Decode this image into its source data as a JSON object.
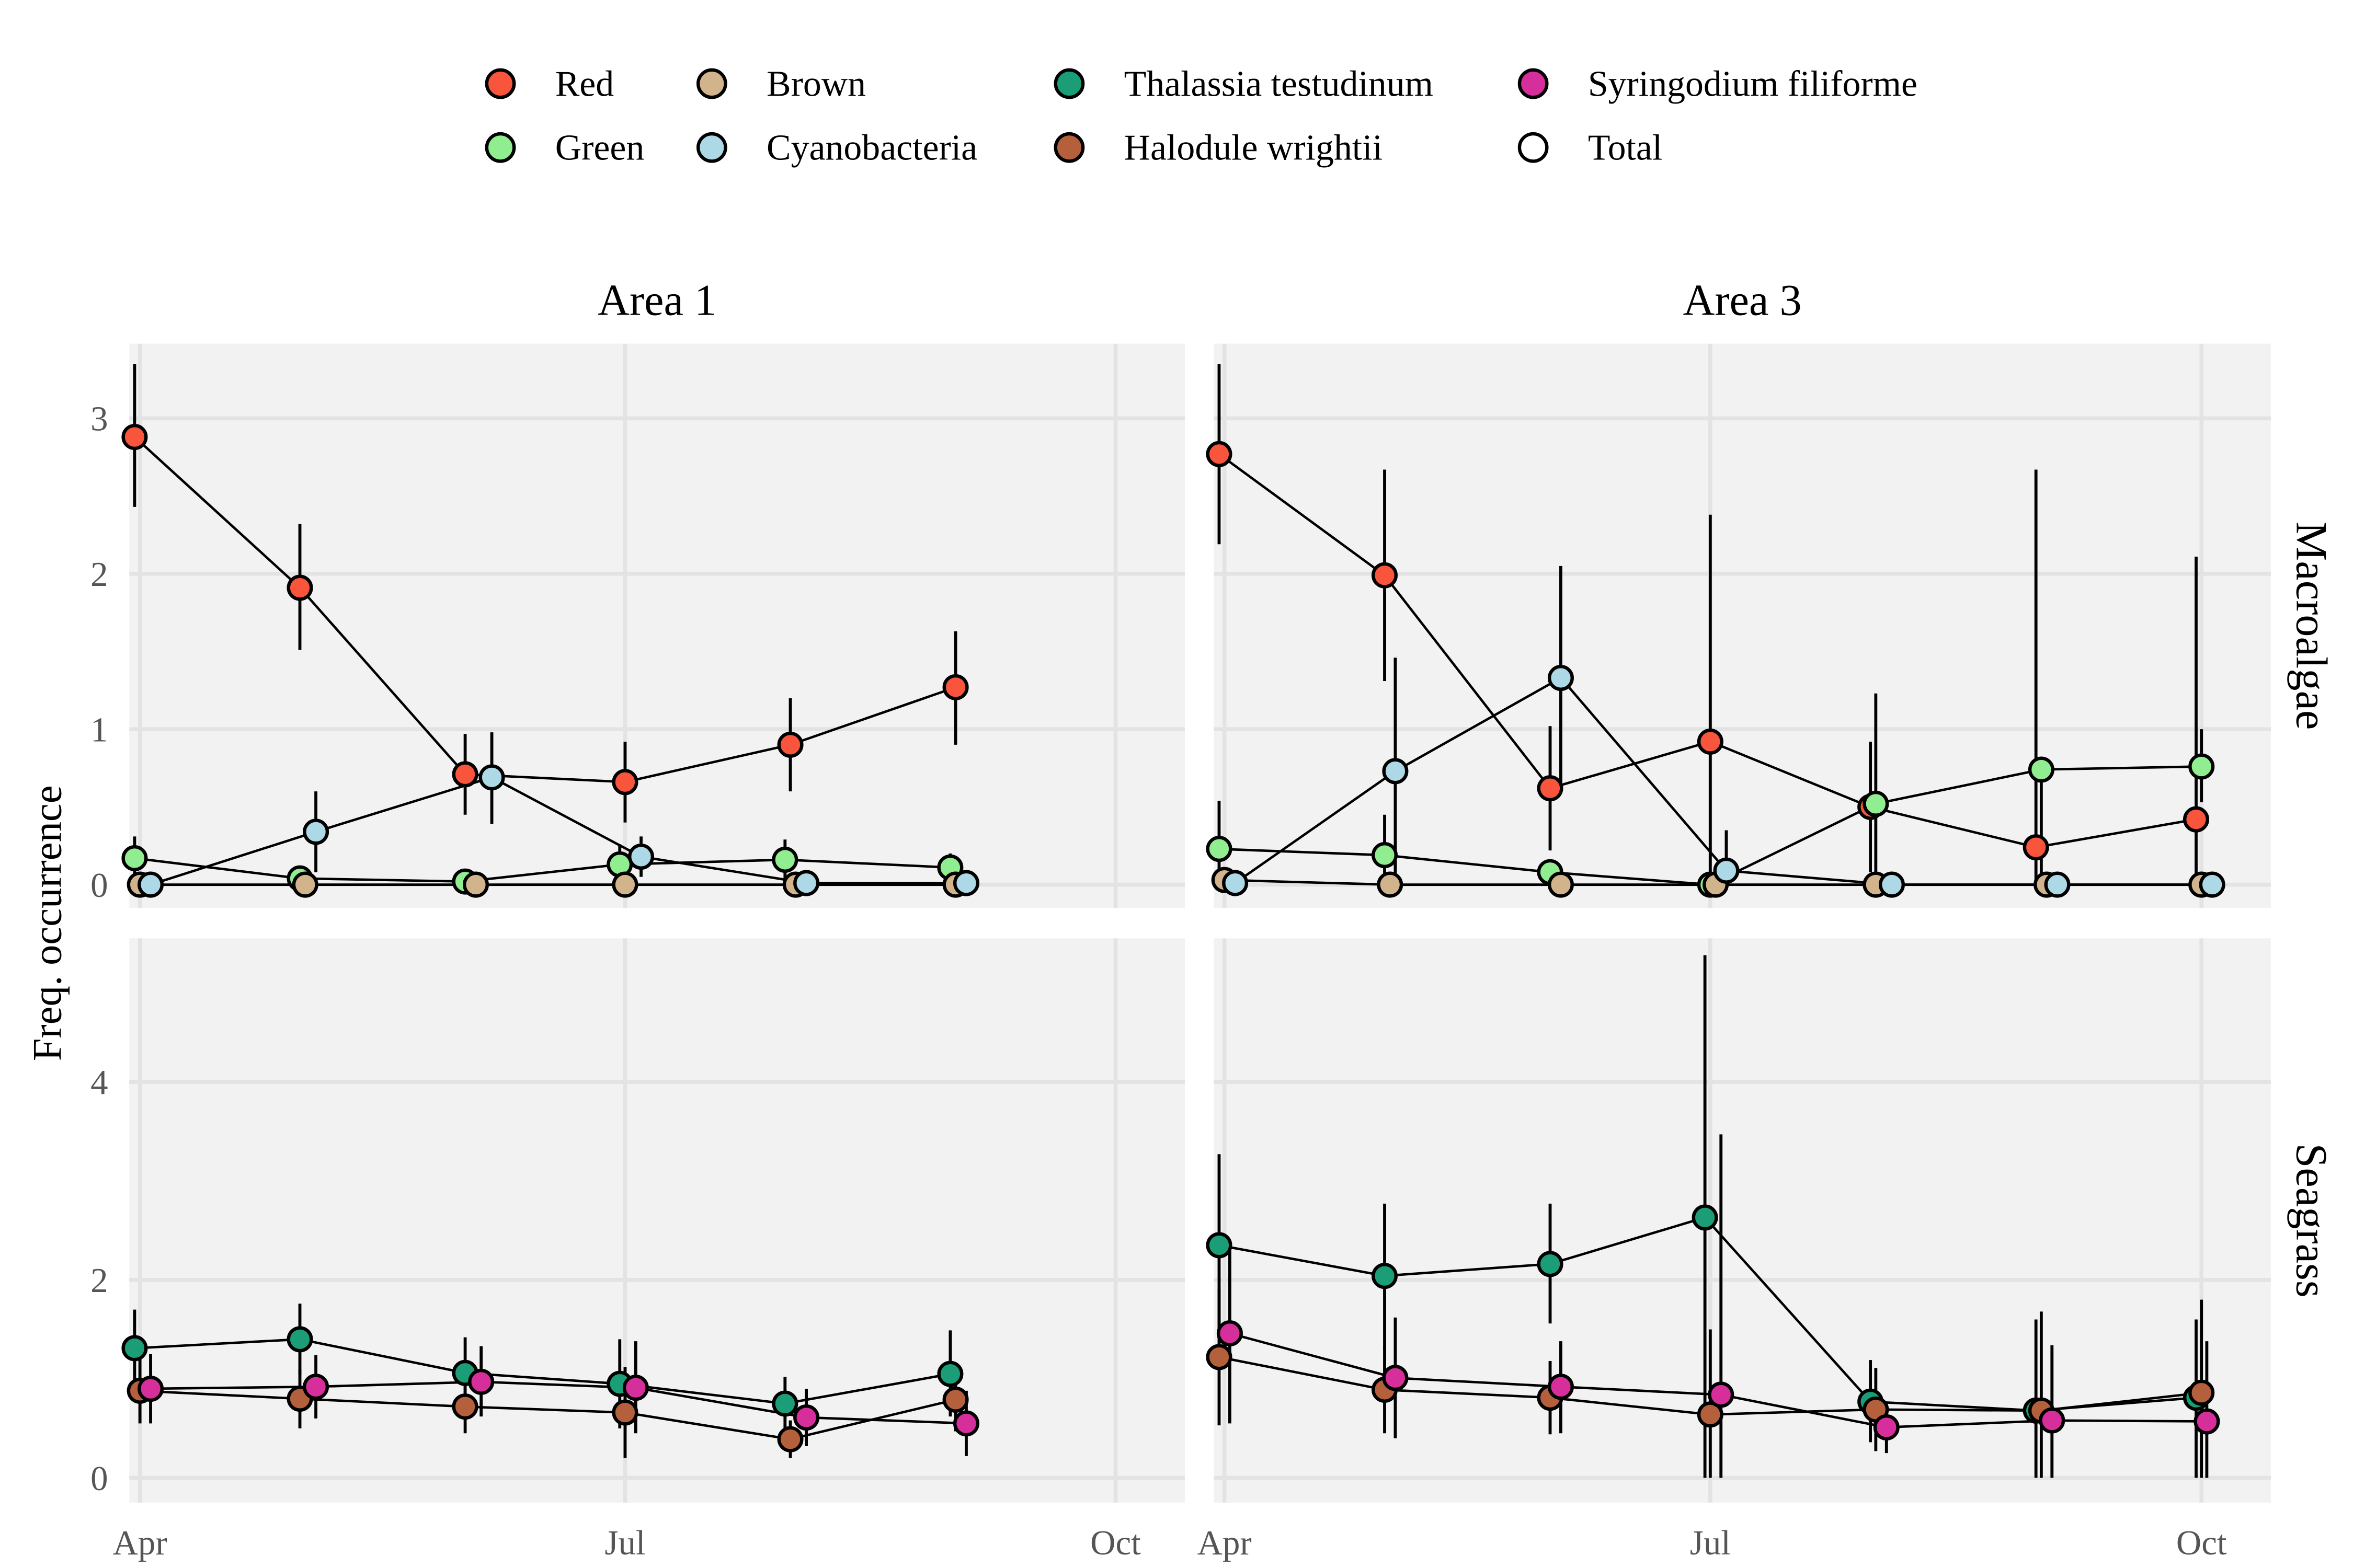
{
  "chart_data": {
    "type": "scatter",
    "ylabel": "Freq. occurrence",
    "x_ticks": [
      "Apr",
      "Jul",
      "Oct"
    ],
    "x_tick_dates": [
      "2019-04-01",
      "2019-07-01",
      "2019-10-01"
    ],
    "grid": true,
    "legend_position": "top",
    "colors": {
      "Red": "#f8553c",
      "Green": "#90ee90",
      "Brown": "#d2b48c",
      "Cyanobacteria": "#add8e6",
      "Thalassia testudinum": "#1b9e77",
      "Halodule wrightii": "#b5603c",
      "Syringodium filiforme": "#d62f9b",
      "Total": "#ffffff"
    },
    "legend": [
      "Red",
      "Brown",
      "Thalassia testudinum",
      "Syringodium filiforme",
      "Green",
      "Cyanobacteria",
      "Halodule wrightii",
      "Total"
    ],
    "columns": [
      "Area 1",
      "Area 3"
    ],
    "rows": [
      "Macroalgae",
      "Seagrass"
    ],
    "row_yticks": {
      "Macroalgae": [
        0,
        1,
        2,
        3
      ],
      "Seagrass": [
        0,
        2,
        4
      ]
    },
    "panels": [
      {
        "area": "Area 1",
        "group": "Macroalgae",
        "series": [
          {
            "name": "Red",
            "x": [
              "2019-03-31",
              "2019-05-01",
              "2019-06-01",
              "2019-07-01",
              "2019-08-01",
              "2019-09-01"
            ],
            "y": [
              2.88,
              1.91,
              0.71,
              0.66,
              0.9,
              1.27
            ],
            "lo": [
              2.43,
              1.51,
              0.45,
              0.4,
              0.6,
              0.9
            ],
            "hi": [
              3.35,
              2.32,
              0.97,
              0.92,
              1.2,
              1.63
            ]
          },
          {
            "name": "Green",
            "x": [
              "2019-03-31",
              "2019-05-01",
              "2019-06-01",
              "2019-06-30",
              "2019-07-31",
              "2019-08-31"
            ],
            "y": [
              0.17,
              0.04,
              0.02,
              0.13,
              0.16,
              0.11
            ],
            "lo": [
              0.03,
              0,
              0,
              0,
              0.03,
              0
            ],
            "hi": [
              0.31,
              0.08,
              0.05,
              0.26,
              0.29,
              0.2
            ]
          },
          {
            "name": "Brown",
            "x": [
              "2019-04-01",
              "2019-05-02",
              "2019-06-03",
              "2019-07-01",
              "2019-08-02",
              "2019-09-01"
            ],
            "y": [
              0,
              0,
              0,
              0,
              0,
              0
            ],
            "lo": [
              0,
              0,
              0,
              0,
              0,
              0
            ],
            "hi": [
              0,
              0,
              0,
              0,
              0,
              0
            ]
          },
          {
            "name": "Cyanobacteria",
            "x": [
              "2019-04-03",
              "2019-05-04",
              "2019-06-06",
              "2019-07-04",
              "2019-08-04",
              "2019-09-03"
            ],
            "y": [
              0,
              0.34,
              0.69,
              0.18,
              0.01,
              0.01
            ],
            "lo": [
              0,
              0.08,
              0.39,
              0.05,
              0,
              0
            ],
            "hi": [
              0,
              0.6,
              0.98,
              0.31,
              0.03,
              0.03
            ]
          }
        ]
      },
      {
        "area": "Area 3",
        "group": "Macroalgae",
        "series": [
          {
            "name": "Red",
            "x": [
              "2019-03-31",
              "2019-05-01",
              "2019-06-01",
              "2019-07-01",
              "2019-07-31",
              "2019-08-31",
              "2019-09-30"
            ],
            "y": [
              2.77,
              1.99,
              0.62,
              0.92,
              0.5,
              0.24,
              0.42
            ],
            "lo": [
              2.19,
              1.31,
              0.22,
              0,
              0.08,
              0,
              0
            ],
            "hi": [
              3.35,
              2.67,
              1.02,
              2.38,
              0.92,
              2.67,
              2.11
            ]
          },
          {
            "name": "Green",
            "x": [
              "2019-03-31",
              "2019-05-01",
              "2019-06-01",
              "2019-07-01",
              "2019-08-01",
              "2019-09-01",
              "2019-10-01"
            ],
            "y": [
              0.23,
              0.19,
              0.08,
              0,
              0.52,
              0.74,
              0.76
            ],
            "lo": [
              0,
              0,
              0,
              0,
              0,
              0,
              0.53
            ],
            "hi": [
              0.54,
              0.45,
              0.16,
              0,
              1.23,
              0.74,
              1.0
            ]
          },
          {
            "name": "Brown",
            "x": [
              "2019-04-01",
              "2019-05-02",
              "2019-06-03",
              "2019-07-02",
              "2019-08-01",
              "2019-09-02",
              "2019-10-01"
            ],
            "y": [
              0.03,
              0,
              0,
              0,
              0,
              0,
              0
            ],
            "lo": [
              0,
              0,
              0,
              0,
              0,
              0,
              0
            ],
            "hi": [
              0.06,
              0,
              0,
              0,
              0,
              0,
              0
            ]
          },
          {
            "name": "Cyanobacteria",
            "x": [
              "2019-04-03",
              "2019-05-03",
              "2019-06-03",
              "2019-07-04",
              "2019-08-04",
              "2019-09-04",
              "2019-10-03"
            ],
            "y": [
              0.01,
              0.73,
              1.33,
              0.09,
              0,
              0,
              0
            ],
            "lo": [
              0,
              0,
              0.62,
              0,
              0,
              0,
              0
            ],
            "hi": [
              0.03,
              1.46,
              2.05,
              0.35,
              0,
              0,
              0
            ]
          }
        ]
      },
      {
        "area": "Area 1",
        "group": "Seagrass",
        "series": [
          {
            "name": "Thalassia testudinum",
            "x": [
              "2019-03-31",
              "2019-05-01",
              "2019-06-01",
              "2019-06-30",
              "2019-07-31",
              "2019-08-31"
            ],
            "y": [
              1.31,
              1.4,
              1.06,
              0.95,
              0.75,
              1.05
            ],
            "lo": [
              0.93,
              1.04,
              0.71,
              0.5,
              0.48,
              0.62
            ],
            "hi": [
              1.7,
              1.76,
              1.42,
              1.4,
              1.02,
              1.49
            ]
          },
          {
            "name": "Halodule wrightii",
            "x": [
              "2019-04-01",
              "2019-05-01",
              "2019-06-01",
              "2019-07-01",
              "2019-08-01",
              "2019-09-01"
            ],
            "y": [
              0.88,
              0.8,
              0.72,
              0.66,
              0.39,
              0.79
            ],
            "lo": [
              0.55,
              0.5,
              0.45,
              0.2,
              0.2,
              0.47
            ],
            "hi": [
              1.2,
              1.1,
              1.0,
              1.12,
              0.58,
              1.1
            ]
          },
          {
            "name": "Syringodium filiforme",
            "x": [
              "2019-04-03",
              "2019-05-04",
              "2019-06-04",
              "2019-07-03",
              "2019-08-04",
              "2019-09-03"
            ],
            "y": [
              0.9,
              0.92,
              0.97,
              0.91,
              0.61,
              0.55
            ],
            "lo": [
              0.55,
              0.6,
              0.62,
              0.45,
              0.32,
              0.22
            ],
            "hi": [
              1.25,
              1.24,
              1.33,
              1.38,
              0.9,
              0.88
            ]
          }
        ]
      },
      {
        "area": "Area 3",
        "group": "Seagrass",
        "series": [
          {
            "name": "Thalassia testudinum",
            "x": [
              "2019-03-31",
              "2019-05-01",
              "2019-06-01",
              "2019-06-30",
              "2019-07-31",
              "2019-08-31",
              "2019-09-30"
            ],
            "y": [
              2.35,
              2.04,
              2.16,
              2.63,
              0.77,
              0.68,
              0.81
            ],
            "lo": [
              1.42,
              1.31,
              1.56,
              0,
              0.36,
              0,
              0
            ],
            "hi": [
              3.27,
              2.77,
              2.77,
              5.28,
              1.19,
              1.6,
              1.6
            ]
          },
          {
            "name": "Halodule wrightii",
            "x": [
              "2019-03-31",
              "2019-05-01",
              "2019-06-01",
              "2019-07-01",
              "2019-08-01",
              "2019-09-01",
              "2019-10-01"
            ],
            "y": [
              1.22,
              0.89,
              0.81,
              0.64,
              0.69,
              0.68,
              0.86
            ],
            "lo": [
              0.53,
              0.45,
              0.44,
              0,
              0.27,
              0,
              0
            ],
            "hi": [
              1.91,
              1.33,
              1.18,
              1.5,
              1.11,
              1.68,
              1.8
            ]
          },
          {
            "name": "Syringodium filiforme",
            "x": [
              "2019-04-02",
              "2019-05-03",
              "2019-06-03",
              "2019-07-03",
              "2019-08-03",
              "2019-09-03",
              "2019-10-02"
            ],
            "y": [
              1.46,
              1.01,
              0.92,
              0.84,
              0.51,
              0.58,
              0.57
            ],
            "lo": [
              0.55,
              0.4,
              0.45,
              0,
              0.25,
              0,
              0
            ],
            "hi": [
              2.37,
              1.62,
              1.38,
              3.47,
              0.76,
              1.34,
              1.38
            ]
          }
        ]
      }
    ]
  }
}
